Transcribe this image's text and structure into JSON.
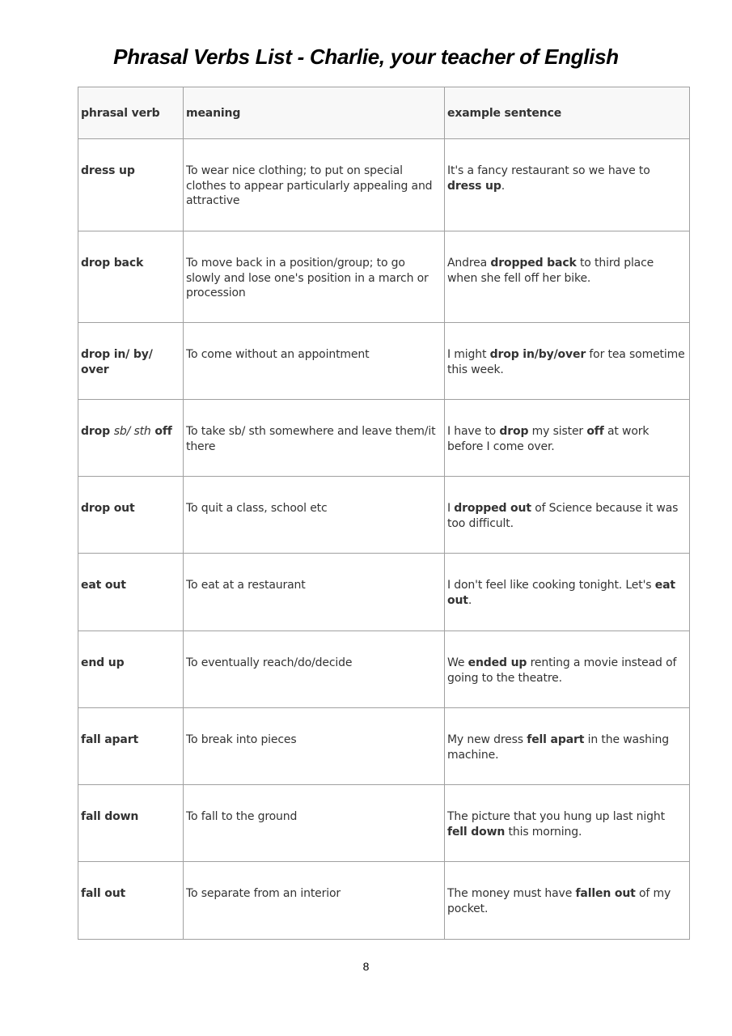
{
  "title": "Phrasal Verbs List - Charlie, your teacher of English",
  "table": {
    "headers": [
      "phrasal verb",
      "meaning",
      "example sentence"
    ],
    "rows": [
      {
        "verb": [
          {
            "t": "dress up"
          }
        ],
        "meaning": "To wear nice clothing; to put on special clothes to appear particularly appealing and attractive",
        "example": [
          {
            "t": "It's a fancy restaurant so we have to "
          },
          {
            "t": "dress up",
            "b": true
          },
          {
            "t": "."
          }
        ]
      },
      {
        "verb": [
          {
            "t": "drop back"
          }
        ],
        "meaning": "To move back in a position/group; to go slowly and lose one's position in a march or procession",
        "example": [
          {
            "t": "Andrea "
          },
          {
            "t": "dropped back",
            "b": true
          },
          {
            "t": " to third place when she fell off her bike."
          }
        ]
      },
      {
        "verb": [
          {
            "t": "drop in/ by/ over"
          }
        ],
        "meaning": "To come without an appointment",
        "example": [
          {
            "t": "I might "
          },
          {
            "t": "drop in/by/over",
            "b": true
          },
          {
            "t": " for tea sometime this week."
          }
        ]
      },
      {
        "verb": [
          {
            "t": "drop "
          },
          {
            "t": "sb/ sth",
            "i": true
          },
          {
            "t": " off"
          }
        ],
        "meaning": "To take sb/ sth somewhere and leave them/it there",
        "example": [
          {
            "t": "I have to "
          },
          {
            "t": "drop",
            "b": true
          },
          {
            "t": " my sister "
          },
          {
            "t": "off",
            "b": true
          },
          {
            "t": " at work before I come over."
          }
        ]
      },
      {
        "verb": [
          {
            "t": "drop out"
          }
        ],
        "meaning": "To quit a class, school etc",
        "example": [
          {
            "t": "I "
          },
          {
            "t": "dropped out",
            "b": true
          },
          {
            "t": " of Science because it was too difficult."
          }
        ]
      },
      {
        "verb": [
          {
            "t": "eat out"
          }
        ],
        "meaning": "To eat at a restaurant",
        "example": [
          {
            "t": "I don't feel like cooking tonight. Let's "
          },
          {
            "t": "eat out",
            "b": true
          },
          {
            "t": "."
          }
        ]
      },
      {
        "verb": [
          {
            "t": "end up"
          }
        ],
        "meaning": "To eventually reach/do/decide",
        "example": [
          {
            "t": "We "
          },
          {
            "t": "ended up",
            "b": true
          },
          {
            "t": " renting a movie instead of going to the theatre."
          }
        ]
      },
      {
        "verb": [
          {
            "t": "fall apart"
          }
        ],
        "meaning": "To break into pieces",
        "example": [
          {
            "t": "My new dress "
          },
          {
            "t": "fell apart",
            "b": true
          },
          {
            "t": " in the washing machine."
          }
        ]
      },
      {
        "verb": [
          {
            "t": "fall down"
          }
        ],
        "meaning": "To fall to the ground",
        "example": [
          {
            "t": "The picture that you hung up last night "
          },
          {
            "t": "fell down",
            "b": true
          },
          {
            "t": " this morning."
          }
        ]
      },
      {
        "verb": [
          {
            "t": "fall out"
          }
        ],
        "meaning": "To separate from an interior",
        "example": [
          {
            "t": "The money must have "
          },
          {
            "t": "fallen out",
            "b": true
          },
          {
            "t": " of my pocket."
          }
        ]
      }
    ]
  },
  "page_number": "8"
}
